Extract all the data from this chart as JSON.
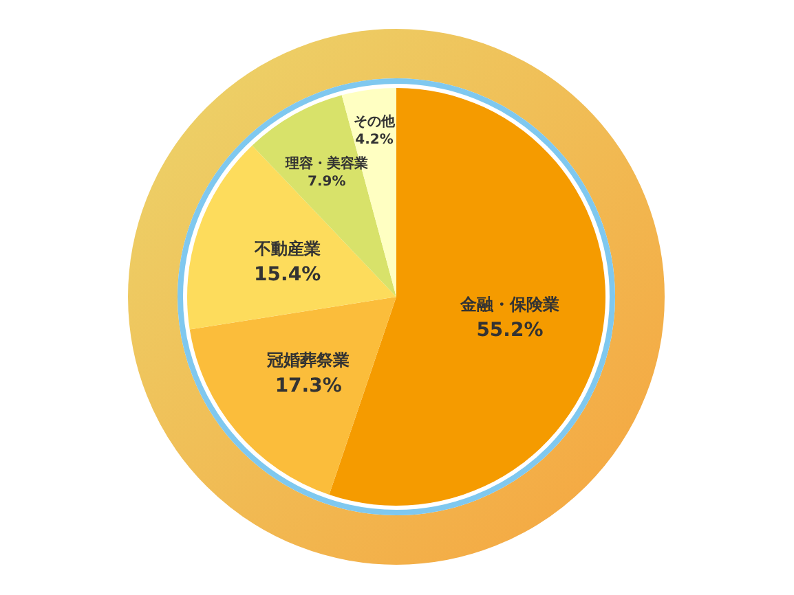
{
  "chart_data": {
    "type": "pie",
    "categories": [
      "金融・保険業",
      "冠婚葬祭業",
      "不動産業",
      "理容・美容業",
      "その他"
    ],
    "values": [
      55.2,
      17.3,
      15.4,
      7.9,
      4.2
    ],
    "colors": [
      "#f59b00",
      "#fbbd3b",
      "#fddc5c",
      "#d8e26a",
      "#ffffc2"
    ],
    "value_labels": [
      "55.2%",
      "17.3%",
      "15.4%",
      "7.9%",
      "4.2%"
    ]
  }
}
